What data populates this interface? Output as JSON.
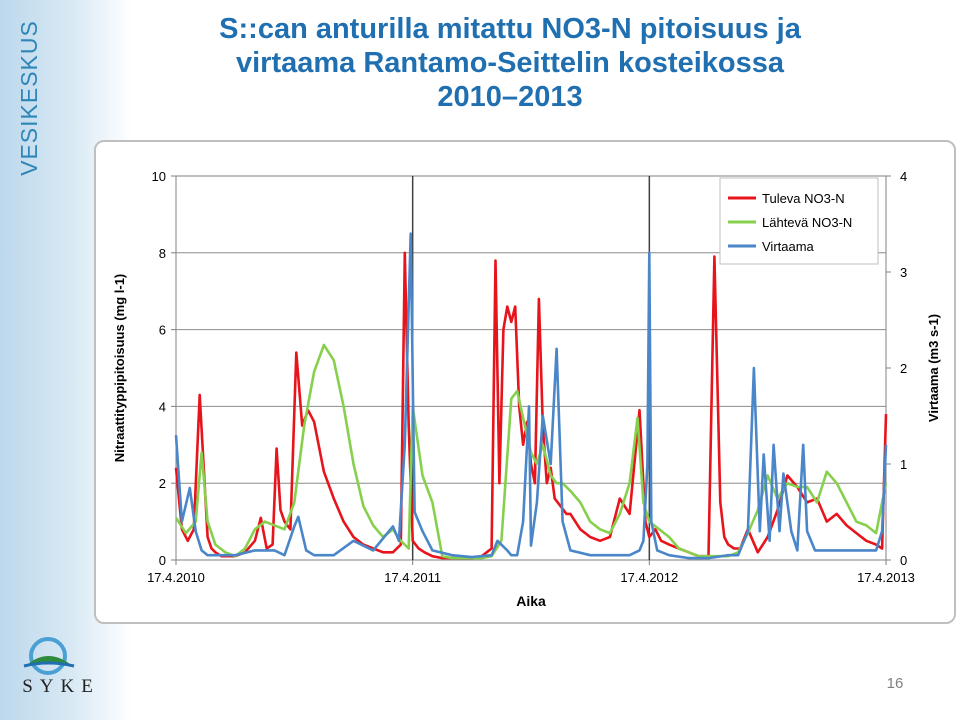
{
  "brand": {
    "vertical_text": "VESIKESKUS",
    "logo_text": "SYKE"
  },
  "slide": {
    "title_line1": "S::can anturilla mitattu NO3-N pitoisuus ja",
    "title_line2": "virtaama Rantamo-Seittelin kosteikossa",
    "title_line3": "2010–2013",
    "page_number": "16"
  },
  "colors": {
    "tuleva": "#e8141c",
    "lahteva": "#86d04e",
    "virtaama": "#4a86c8",
    "title": "#1f6fb1"
  },
  "chart_data": {
    "type": "line",
    "xlabel": "Aika",
    "ylabel": "Nitraattityppipitoisuus (mg l-1)",
    "ylabel2": "Virtaama (m3 s-1)",
    "x_ticks": [
      "17.4.2010",
      "17.4.2011",
      "17.4.2012",
      "17.4.2013"
    ],
    "x_range_months": [
      0,
      36
    ],
    "ylim": [
      0,
      10
    ],
    "y_ticks": [
      "0",
      "2",
      "4",
      "6",
      "8",
      "10"
    ],
    "y2lim": [
      0,
      4
    ],
    "y2_ticks": [
      "0",
      "1",
      "2",
      "3",
      "4"
    ],
    "grid": true,
    "legend_position": "top-right",
    "series": [
      {
        "name": "Tuleva NO3-N",
        "axis": "left",
        "x": [
          0,
          0.3,
          0.6,
          0.9,
          1.2,
          1.6,
          1.8,
          2,
          2.3,
          2.6,
          3,
          3.5,
          4,
          4.3,
          4.6,
          4.9,
          5.1,
          5.3,
          5.5,
          5.8,
          6.1,
          6.4,
          6.7,
          7,
          7.5,
          8,
          8.5,
          9,
          9.5,
          10,
          10.5,
          11,
          11.4,
          11.6,
          11.8,
          12,
          12.3,
          12.6,
          13,
          13.5,
          14,
          14.5,
          15,
          15.5,
          16,
          16.2,
          16.4,
          16.6,
          16.8,
          17,
          17.2,
          17.4,
          17.6,
          17.8,
          18,
          18.2,
          18.4,
          18.6,
          18.8,
          19,
          19.2,
          19.5,
          19.8,
          20,
          20.5,
          21,
          21.5,
          22,
          22.5,
          23,
          23.5,
          23.8,
          24,
          24.3,
          24.6,
          25,
          25.5,
          26,
          26.5,
          27,
          27.3,
          27.6,
          27.8,
          28,
          28.3,
          28.6,
          29,
          29.5,
          30,
          30.5,
          31,
          31.5,
          32,
          32.5,
          33,
          33.5,
          34,
          34.5,
          35,
          35.5,
          35.8,
          36
        ],
        "y": [
          2.4,
          0.8,
          0.5,
          0.8,
          4.3,
          0.6,
          0.3,
          0.2,
          0.1,
          0.1,
          0.1,
          0.2,
          0.5,
          1.1,
          0.3,
          0.4,
          2.9,
          1.3,
          1.0,
          0.8,
          5.4,
          3.5,
          3.9,
          3.6,
          2.3,
          1.6,
          1.0,
          0.6,
          0.4,
          0.3,
          0.2,
          0.2,
          0.4,
          8.0,
          3.5,
          0.5,
          0.3,
          0.2,
          0.1,
          0.05,
          0.05,
          0.05,
          0.05,
          0.1,
          0.3,
          7.8,
          2.0,
          6.0,
          6.6,
          6.2,
          6.6,
          4.0,
          3.0,
          3.6,
          2.5,
          2.0,
          6.8,
          3.5,
          2.0,
          2.4,
          1.6,
          1.4,
          1.2,
          1.2,
          0.8,
          0.6,
          0.5,
          0.6,
          1.6,
          1.2,
          3.9,
          1.0,
          0.6,
          0.8,
          0.5,
          0.4,
          0.3,
          0.2,
          0.1,
          0.1,
          7.9,
          1.5,
          0.6,
          0.4,
          0.3,
          0.3,
          0.8,
          0.2,
          0.6,
          1.3,
          2.2,
          1.9,
          1.5,
          1.6,
          1.0,
          1.2,
          0.9,
          0.7,
          0.5,
          0.4,
          0.3,
          3.8
        ]
      },
      {
        "name": "Lähtevä NO3-N",
        "axis": "left",
        "x": [
          0,
          0.5,
          1,
          1.3,
          1.6,
          2,
          2.5,
          3,
          3.5,
          4,
          4.5,
          5,
          5.5,
          6,
          6.5,
          7,
          7.5,
          8,
          8.5,
          9,
          9.5,
          10,
          10.5,
          11,
          11.4,
          11.8,
          12,
          12.5,
          13,
          13.5,
          14,
          14.5,
          15,
          15.5,
          16,
          16.5,
          17,
          17.3,
          17.6,
          18,
          18.3,
          18.6,
          19,
          19.3,
          19.6,
          20,
          20.5,
          21,
          21.5,
          22,
          22.5,
          23,
          23.4,
          23.7,
          24,
          24.5,
          25,
          25.5,
          26,
          26.5,
          27,
          27.5,
          28,
          28.5,
          29,
          29.5,
          30,
          30.5,
          31,
          31.5,
          32,
          32.5,
          33,
          33.5,
          34,
          34.5,
          35,
          35.5,
          35.8,
          36
        ],
        "y": [
          1.1,
          0.7,
          1.0,
          2.8,
          1.0,
          0.4,
          0.2,
          0.1,
          0.3,
          0.8,
          1.0,
          0.9,
          0.8,
          1.5,
          3.5,
          4.9,
          5.6,
          5.2,
          4.0,
          2.5,
          1.4,
          0.9,
          0.6,
          0.8,
          0.5,
          0.3,
          4.0,
          2.2,
          1.5,
          0.1,
          0.05,
          0.05,
          0.05,
          0.05,
          0.1,
          0.5,
          4.2,
          4.4,
          3.7,
          2.8,
          2.5,
          3.0,
          2.2,
          2.0,
          2.0,
          1.8,
          1.5,
          1.0,
          0.8,
          0.7,
          1.2,
          2.0,
          3.7,
          1.5,
          1.0,
          0.8,
          0.6,
          0.3,
          0.2,
          0.1,
          0.1,
          0.1,
          0.1,
          0.2,
          0.7,
          1.3,
          2.2,
          1.6,
          2.0,
          1.9,
          1.9,
          1.5,
          2.3,
          2.0,
          1.5,
          1.0,
          0.9,
          0.7,
          1.5,
          2.0
        ]
      },
      {
        "name": "Virtaama",
        "axis": "right",
        "x": [
          0,
          0.3,
          0.7,
          1.0,
          1.3,
          1.6,
          2,
          3,
          4,
          5,
          5.5,
          6,
          6.2,
          6.6,
          7,
          8,
          9,
          10,
          11,
          11.3,
          11.6,
          11.9,
          12.1,
          12.5,
          13,
          14,
          15,
          16,
          16.3,
          16.8,
          17,
          17.3,
          17.6,
          17.9,
          18,
          18.3,
          18.6,
          19,
          19.3,
          19.6,
          20,
          21,
          22,
          23,
          23.5,
          23.7,
          23.9,
          24,
          24.1,
          24.4,
          25,
          26,
          27,
          28,
          28.5,
          29,
          29.3,
          29.6,
          29.8,
          30.1,
          30.3,
          30.6,
          30.8,
          31.2,
          31.5,
          31.8,
          32,
          32.4,
          33,
          34,
          35,
          35.5,
          35.8,
          36
        ],
        "y": [
          1.3,
          0.4,
          0.75,
          0.3,
          0.1,
          0.05,
          0.05,
          0.05,
          0.1,
          0.1,
          0.05,
          0.35,
          0.45,
          0.1,
          0.05,
          0.05,
          0.2,
          0.1,
          0.35,
          0.2,
          1.2,
          3.4,
          0.5,
          0.3,
          0.1,
          0.05,
          0.03,
          0.05,
          0.2,
          0.1,
          0.05,
          0.05,
          0.4,
          1.6,
          0.15,
          0.6,
          1.5,
          1.0,
          2.2,
          0.4,
          0.1,
          0.05,
          0.05,
          0.05,
          0.1,
          0.2,
          1.0,
          3.2,
          0.4,
          0.1,
          0.05,
          0.02,
          0.02,
          0.05,
          0.05,
          0.3,
          2.0,
          0.3,
          1.1,
          0.2,
          1.2,
          0.3,
          0.9,
          0.3,
          0.1,
          1.2,
          0.3,
          0.1,
          0.1,
          0.1,
          0.1,
          0.1,
          0.3,
          1.2
        ]
      }
    ]
  }
}
